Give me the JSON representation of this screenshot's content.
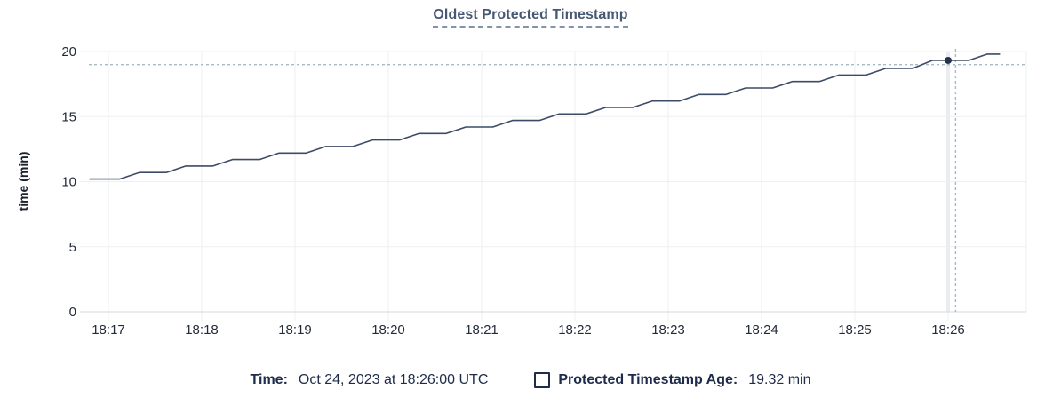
{
  "header": {
    "title": "Oldest Protected Timestamp"
  },
  "legend": {
    "time_label": "Time:",
    "time_value": "Oct 24, 2023 at 18:26:00 UTC",
    "series_label": "Protected Timestamp Age:",
    "series_value": "19.32 min",
    "checkbox_icon": "series-toggle-checkbox"
  },
  "chart_data": {
    "type": "line",
    "title": "Oldest Protected Timestamp",
    "xlabel": "",
    "ylabel": "time (min)",
    "x_ticks": [
      "18:17",
      "18:18",
      "18:19",
      "18:20",
      "18:21",
      "18:22",
      "18:23",
      "18:24",
      "18:25",
      "18:26"
    ],
    "y_ticks": [
      0,
      5,
      10,
      15,
      20
    ],
    "ylim": [
      0,
      20
    ],
    "xlim_minutes_from_first_tick": [
      -0.3,
      9.84
    ],
    "grid": true,
    "legend_position": "bottom",
    "series": [
      {
        "name": "Protected Timestamp Age",
        "shape": "staircase",
        "points_minutes_value": [
          [
            -0.2,
            10.2
          ],
          [
            0.12,
            10.2
          ],
          [
            0.33,
            10.7
          ],
          [
            0.62,
            10.7
          ],
          [
            0.83,
            11.2
          ],
          [
            1.12,
            11.2
          ],
          [
            1.33,
            11.7
          ],
          [
            1.62,
            11.7
          ],
          [
            1.83,
            12.2
          ],
          [
            2.12,
            12.2
          ],
          [
            2.33,
            12.7
          ],
          [
            2.62,
            12.7
          ],
          [
            2.83,
            13.2
          ],
          [
            3.12,
            13.2
          ],
          [
            3.33,
            13.7
          ],
          [
            3.62,
            13.7
          ],
          [
            3.83,
            14.2
          ],
          [
            4.12,
            14.2
          ],
          [
            4.33,
            14.7
          ],
          [
            4.62,
            14.7
          ],
          [
            4.83,
            15.2
          ],
          [
            5.12,
            15.2
          ],
          [
            5.33,
            15.7
          ],
          [
            5.62,
            15.7
          ],
          [
            5.83,
            16.2
          ],
          [
            6.12,
            16.2
          ],
          [
            6.33,
            16.7
          ],
          [
            6.62,
            16.7
          ],
          [
            6.83,
            17.2
          ],
          [
            7.12,
            17.2
          ],
          [
            7.33,
            17.7
          ],
          [
            7.62,
            17.7
          ],
          [
            7.83,
            18.2
          ],
          [
            8.12,
            18.2
          ],
          [
            8.33,
            18.7
          ],
          [
            8.62,
            18.7
          ],
          [
            8.83,
            19.32
          ],
          [
            9.22,
            19.32
          ],
          [
            9.42,
            19.8
          ],
          [
            9.55,
            19.8
          ]
        ]
      }
    ],
    "hover": {
      "crosshair_x_minutes": 9.08,
      "crosshair_y_value": 19.0,
      "highlighted_tick": "18:26",
      "point": {
        "x_tick": "18:26",
        "x_minutes": 9.0,
        "value": 19.32
      }
    },
    "colors": {
      "line": "#3c4b66",
      "dot": "#25334d",
      "grid": "#edeff2",
      "axis": "#dcdfe3",
      "hover_band": "#e9ebee",
      "crosshair": "#a5bac3",
      "tick_text": "#232b38",
      "axis_label_text": "#1c222b",
      "title_text": "#475872",
      "legend_text": "#1e2b4a"
    }
  }
}
